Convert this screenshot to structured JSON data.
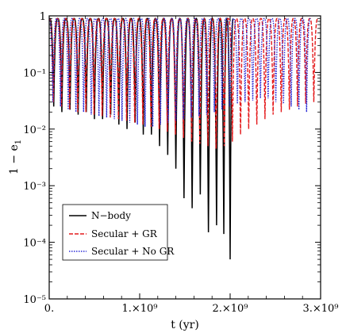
{
  "chart_data": {
    "type": "line",
    "title": "",
    "xlabel": "t (yr)",
    "ylabel": "1 − e",
    "ylabel_subscript": "1",
    "xlim": [
      0,
      3000000000.0
    ],
    "ylim": [
      1e-05,
      1
    ],
    "yscale": "log",
    "grid": false,
    "legend_placement": "lower-left",
    "xticks": [
      {
        "value": 0,
        "label": "0."
      },
      {
        "value": 1000000000.0,
        "label": "1.×10⁹"
      },
      {
        "value": 2000000000.0,
        "label": "2.×10⁹"
      },
      {
        "value": 3000000000.0,
        "label": "3.×10⁹"
      }
    ],
    "yticks": [
      {
        "value": 1,
        "label": "1"
      },
      {
        "value": 0.1,
        "label": "10⁻¹"
      },
      {
        "value": 0.01,
        "label": "10⁻²"
      },
      {
        "value": 0.001,
        "label": "10⁻³"
      },
      {
        "value": 0.0001,
        "label": "10⁻⁴"
      },
      {
        "value": 1e-05,
        "label": "10⁻⁵"
      }
    ],
    "series": [
      {
        "name": "N−body",
        "color": "#000000",
        "style": "solid",
        "peak_value": 0.9,
        "oscillation_minima": [
          {
            "t": 50000000.0,
            "min": 0.025
          },
          {
            "t": 140000000.0,
            "min": 0.02
          },
          {
            "t": 230000000.0,
            "min": 0.022
          },
          {
            "t": 320000000.0,
            "min": 0.018
          },
          {
            "t": 410000000.0,
            "min": 0.02
          },
          {
            "t": 500000000.0,
            "min": 0.015
          },
          {
            "t": 590000000.0,
            "min": 0.015
          },
          {
            "t": 680000000.0,
            "min": 0.018
          },
          {
            "t": 770000000.0,
            "min": 0.012
          },
          {
            "t": 860000000.0,
            "min": 0.01
          },
          {
            "t": 950000000.0,
            "min": 0.013
          },
          {
            "t": 1040000000.0,
            "min": 0.008
          },
          {
            "t": 1130000000.0,
            "min": 0.008
          },
          {
            "t": 1220000000.0,
            "min": 0.005
          },
          {
            "t": 1310000000.0,
            "min": 0.0035
          },
          {
            "t": 1400000000.0,
            "min": 0.002
          },
          {
            "t": 1490000000.0,
            "min": 0.0006
          },
          {
            "t": 1580000000.0,
            "min": 0.0004
          },
          {
            "t": 1670000000.0,
            "min": 0.0007
          },
          {
            "t": 1760000000.0,
            "min": 0.00015
          },
          {
            "t": 1850000000.0,
            "min": 0.0002
          },
          {
            "t": 1930000000.0,
            "min": 0.00014
          },
          {
            "t": 2000000000.0,
            "min": 5e-05
          }
        ]
      },
      {
        "name": "Secular + GR",
        "color": "#e41a1c",
        "style": "dashed",
        "peak_value": 0.9,
        "oscillation_minima": [
          {
            "t": 45000000.0,
            "min": 0.03
          },
          {
            "t": 135000000.0,
            "min": 0.025
          },
          {
            "t": 225000000.0,
            "min": 0.022
          },
          {
            "t": 315000000.0,
            "min": 0.02
          },
          {
            "t": 405000000.0,
            "min": 0.02
          },
          {
            "t": 495000000.0,
            "min": 0.018
          },
          {
            "t": 585000000.0,
            "min": 0.017
          },
          {
            "t": 675000000.0,
            "min": 0.016
          },
          {
            "t": 765000000.0,
            "min": 0.015
          },
          {
            "t": 855000000.0,
            "min": 0.014
          },
          {
            "t": 945000000.0,
            "min": 0.013
          },
          {
            "t": 1035000000.0,
            "min": 0.012
          },
          {
            "t": 1125000000.0,
            "min": 0.011
          },
          {
            "t": 1215000000.0,
            "min": 0.01
          },
          {
            "t": 1305000000.0,
            "min": 0.009
          },
          {
            "t": 1395000000.0,
            "min": 0.008
          },
          {
            "t": 1485000000.0,
            "min": 0.007
          },
          {
            "t": 1575000000.0,
            "min": 0.006
          },
          {
            "t": 1665000000.0,
            "min": 0.0055
          },
          {
            "t": 1755000000.0,
            "min": 0.005
          },
          {
            "t": 1845000000.0,
            "min": 0.0045
          },
          {
            "t": 1935000000.0,
            "min": 0.005
          },
          {
            "t": 2025000000.0,
            "min": 0.006
          },
          {
            "t": 2115000000.0,
            "min": 0.008
          },
          {
            "t": 2205000000.0,
            "min": 0.01
          },
          {
            "t": 2295000000.0,
            "min": 0.012
          },
          {
            "t": 2385000000.0,
            "min": 0.015
          },
          {
            "t": 2475000000.0,
            "min": 0.018
          },
          {
            "t": 2565000000.0,
            "min": 0.02
          },
          {
            "t": 2655000000.0,
            "min": 0.022
          },
          {
            "t": 2745000000.0,
            "min": 0.025
          },
          {
            "t": 2835000000.0,
            "min": 0.028
          },
          {
            "t": 2925000000.0,
            "min": 0.03
          }
        ]
      },
      {
        "name": "Secular + No GR",
        "color": "#2b2bd6",
        "style": "dotted",
        "peak_value": 0.9,
        "oscillation_minima": [
          {
            "t": 40000000.0,
            "min": 0.03
          },
          {
            "t": 125000000.0,
            "min": 0.025
          },
          {
            "t": 210000000.0,
            "min": 0.022
          },
          {
            "t": 295000000.0,
            "min": 0.02
          },
          {
            "t": 380000000.0,
            "min": 0.02
          },
          {
            "t": 465000000.0,
            "min": 0.018
          },
          {
            "t": 550000000.0,
            "min": 0.017
          },
          {
            "t": 635000000.0,
            "min": 0.016
          },
          {
            "t": 720000000.0,
            "min": 0.015
          },
          {
            "t": 805000000.0,
            "min": 0.014
          },
          {
            "t": 890000000.0,
            "min": 0.013
          },
          {
            "t": 975000000.0,
            "min": 0.012
          },
          {
            "t": 1060000000.0,
            "min": 0.011
          },
          {
            "t": 1145000000.0,
            "min": 0.011
          },
          {
            "t": 1230000000.0,
            "min": 0.012
          },
          {
            "t": 1315000000.0,
            "min": 0.013
          },
          {
            "t": 1400000000.0,
            "min": 0.014
          },
          {
            "t": 1485000000.0,
            "min": 0.015
          },
          {
            "t": 1570000000.0,
            "min": 0.016
          },
          {
            "t": 1655000000.0,
            "min": 0.017
          },
          {
            "t": 1740000000.0,
            "min": 0.018
          },
          {
            "t": 1825000000.0,
            "min": 0.02
          },
          {
            "t": 1910000000.0,
            "min": 0.022
          },
          {
            "t": 1995000000.0,
            "min": 0.025
          },
          {
            "t": 2080000000.0,
            "min": 0.028
          },
          {
            "t": 2165000000.0,
            "min": 0.03
          },
          {
            "t": 2250000000.0,
            "min": 0.032
          },
          {
            "t": 2335000000.0,
            "min": 0.035
          },
          {
            "t": 2420000000.0,
            "min": 0.035
          },
          {
            "t": 2505000000.0,
            "min": 0.03
          },
          {
            "t": 2590000000.0,
            "min": 0.028
          },
          {
            "t": 2675000000.0,
            "min": 0.025
          },
          {
            "t": 2760000000.0,
            "min": 0.022
          },
          {
            "t": 2845000000.0,
            "min": 0.02
          }
        ]
      }
    ]
  }
}
